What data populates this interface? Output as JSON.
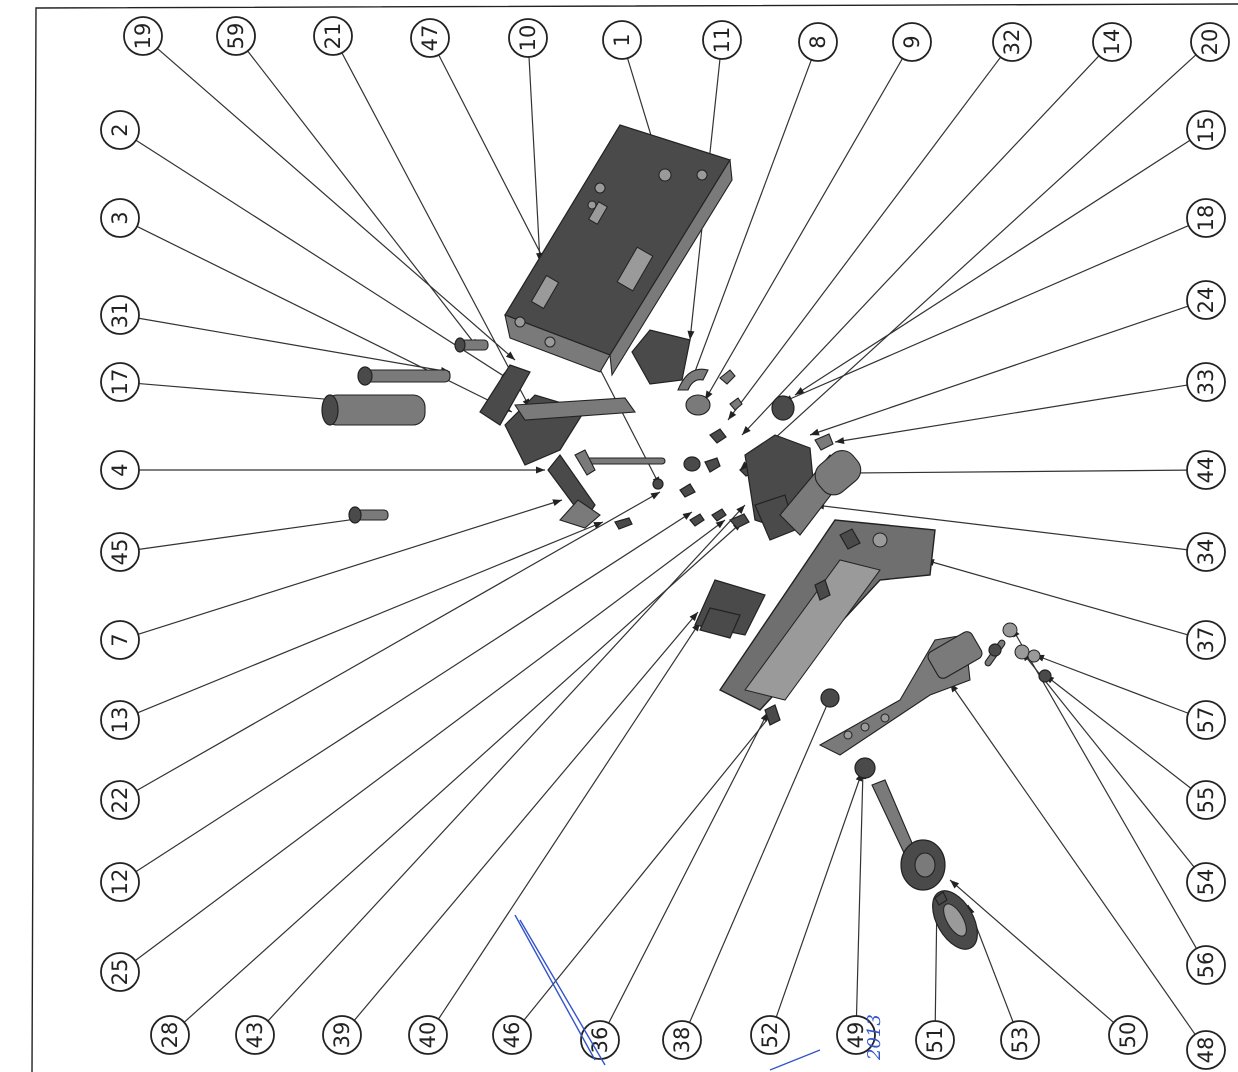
{
  "balloons_left_column": [
    "19",
    "59",
    "21",
    "47",
    "10",
    "1",
    "11",
    "8",
    "9",
    "32",
    "14",
    "20"
  ],
  "balloons_right_column": [
    "15",
    "18",
    "24",
    "33",
    "44",
    "34",
    "37",
    "57",
    "55",
    "54",
    "56",
    "48"
  ],
  "balloons_left_side": [
    "2",
    "3",
    "31",
    "17",
    "4",
    "45",
    "7",
    "13",
    "22",
    "12",
    "25"
  ],
  "balloons_bottom_row": [
    "28",
    "43",
    "39",
    "40",
    "46",
    "36",
    "38",
    "52",
    "49",
    "51",
    "53",
    "50"
  ],
  "handwritten_note": "2013",
  "colors": {
    "ink": "#222222",
    "part_dark": "#4a4a4a",
    "part_mid": "#7a7a7a",
    "pen_blue": "#3355cc"
  }
}
